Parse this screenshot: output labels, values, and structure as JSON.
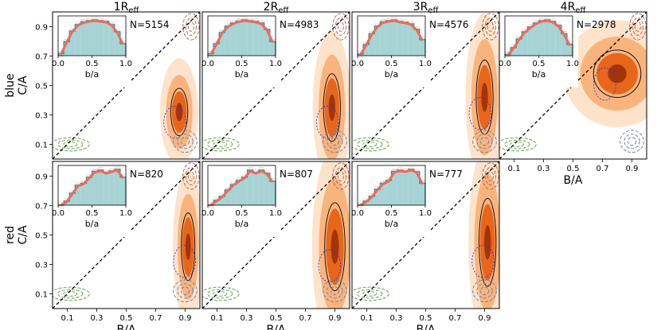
{
  "chart_data": {
    "type": "contour-grid",
    "column_headers": [
      "1R",
      "2R",
      "3R",
      "4R"
    ],
    "column_header_sub": "eff",
    "row_labels": [
      {
        "name": "blue",
        "axis": "C/A"
      },
      {
        "name": "red",
        "axis": "C/A"
      }
    ],
    "xlabel": "B/A",
    "ylabel": "C/A",
    "x_ticks": [
      "0.1",
      "0.3",
      "0.5",
      "0.7",
      "0.9"
    ],
    "y_ticks": [
      "0.1",
      "0.3",
      "0.5",
      "0.7",
      "0.9"
    ],
    "xlim": [
      0.0,
      1.0
    ],
    "ylim": [
      0.0,
      1.0
    ],
    "inset_xlabel": "b/a",
    "inset_ticks": [
      "0.0",
      "0.5",
      "1.0"
    ],
    "colors": {
      "level1": "#fde3cc",
      "level2": "#f9b47e",
      "level3": "#e6661c",
      "level4": "#a23508",
      "hist_fill": "#a7d3d5",
      "hist_line": "#2a8c8e",
      "model_line": "#ee6a5a",
      "green_contour": "#6aa356",
      "red_contour": "#b86555",
      "grey_contour": "#6f84a8",
      "blue_circle": "#3a2ee0"
    },
    "panels": [
      {
        "id": "blue-1",
        "row": 0,
        "col": 0,
        "count": "N=5154",
        "density_center": [
          0.86,
          0.32
        ],
        "density_sigma": [
          0.05,
          0.14
        ],
        "hist": [
          0.05,
          0.35,
          0.62,
          0.78,
          0.85,
          0.88,
          0.9,
          0.88,
          0.86,
          0.78,
          0.6,
          0.3
        ]
      },
      {
        "id": "blue-2",
        "row": 0,
        "col": 1,
        "count": "N=4983",
        "density_center": [
          0.88,
          0.35
        ],
        "density_sigma": [
          0.05,
          0.2
        ],
        "hist": [
          0.05,
          0.3,
          0.58,
          0.74,
          0.82,
          0.87,
          0.9,
          0.88,
          0.86,
          0.82,
          0.66,
          0.35
        ]
      },
      {
        "id": "blue-3",
        "row": 0,
        "col": 2,
        "count": "N=4576",
        "density_center": [
          0.9,
          0.42
        ],
        "density_sigma": [
          0.05,
          0.22
        ],
        "hist": [
          0.04,
          0.28,
          0.55,
          0.74,
          0.85,
          0.88,
          0.9,
          0.86,
          0.84,
          0.8,
          0.66,
          0.4
        ]
      },
      {
        "id": "blue-4",
        "row": 0,
        "col": 3,
        "count": "N=2978",
        "density_center": [
          0.8,
          0.58
        ],
        "density_sigma": [
          0.14,
          0.14
        ],
        "hist": [
          0.03,
          0.2,
          0.42,
          0.6,
          0.72,
          0.82,
          0.88,
          0.9,
          0.86,
          0.76,
          0.55,
          0.28
        ]
      },
      {
        "id": "red-1",
        "row": 1,
        "col": 0,
        "count": "N=820",
        "density_center": [
          0.92,
          0.42
        ],
        "density_sigma": [
          0.04,
          0.2
        ],
        "hist": [
          0.0,
          0.1,
          0.3,
          0.5,
          0.55,
          0.7,
          0.85,
          0.88,
          0.82,
          0.86,
          0.9,
          0.7
        ]
      },
      {
        "id": "red-2",
        "row": 1,
        "col": 1,
        "count": "N=807",
        "density_center": [
          0.9,
          0.42
        ],
        "density_sigma": [
          0.06,
          0.26
        ],
        "hist": [
          0.0,
          0.12,
          0.22,
          0.38,
          0.52,
          0.62,
          0.7,
          0.88,
          0.82,
          0.88,
          0.8,
          0.6
        ]
      },
      {
        "id": "red-3",
        "row": 1,
        "col": 2,
        "count": "N=777",
        "density_center": [
          0.92,
          0.45
        ],
        "density_sigma": [
          0.05,
          0.26
        ],
        "hist": [
          0.0,
          0.1,
          0.22,
          0.4,
          0.55,
          0.62,
          0.85,
          0.88,
          0.86,
          0.9,
          0.84,
          0.55
        ]
      }
    ]
  }
}
